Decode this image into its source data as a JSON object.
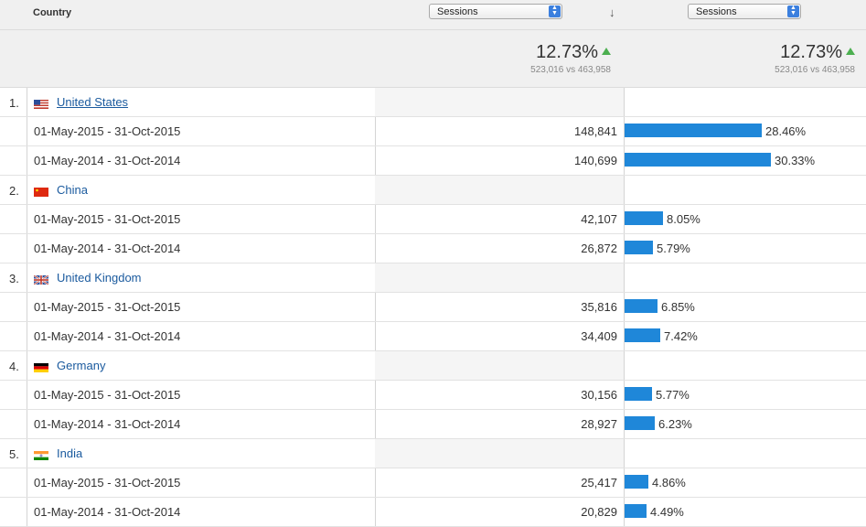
{
  "header": {
    "country_label": "Country",
    "metric_select_1": "Sessions",
    "metric_select_2": "Sessions",
    "sort_icon": "arrow-down-icon"
  },
  "summary": {
    "col1": {
      "percent": "12.73%",
      "comparison": "523,016 vs 463,958"
    },
    "col2": {
      "percent": "12.73%",
      "comparison": "523,016 vs 463,958"
    }
  },
  "rows": [
    {
      "rank": "1.",
      "country": "United States",
      "flag": "us",
      "periods": [
        {
          "range": "01-May-2015 - 31-Oct-2015",
          "sessions": "148,841",
          "share": "28.46%",
          "share_value": 28.46
        },
        {
          "range": "01-May-2014 - 31-Oct-2014",
          "sessions": "140,699",
          "share": "30.33%",
          "share_value": 30.33
        }
      ]
    },
    {
      "rank": "2.",
      "country": "China",
      "flag": "cn",
      "periods": [
        {
          "range": "01-May-2015 - 31-Oct-2015",
          "sessions": "42,107",
          "share": "8.05%",
          "share_value": 8.05
        },
        {
          "range": "01-May-2014 - 31-Oct-2014",
          "sessions": "26,872",
          "share": "5.79%",
          "share_value": 5.79
        }
      ]
    },
    {
      "rank": "3.",
      "country": "United Kingdom",
      "flag": "gb",
      "periods": [
        {
          "range": "01-May-2015 - 31-Oct-2015",
          "sessions": "35,816",
          "share": "6.85%",
          "share_value": 6.85
        },
        {
          "range": "01-May-2014 - 31-Oct-2014",
          "sessions": "34,409",
          "share": "7.42%",
          "share_value": 7.42
        }
      ]
    },
    {
      "rank": "4.",
      "country": "Germany",
      "flag": "de",
      "periods": [
        {
          "range": "01-May-2015 - 31-Oct-2015",
          "sessions": "30,156",
          "share": "5.77%",
          "share_value": 5.77
        },
        {
          "range": "01-May-2014 - 31-Oct-2014",
          "sessions": "28,927",
          "share": "6.23%",
          "share_value": 6.23
        }
      ]
    },
    {
      "rank": "5.",
      "country": "India",
      "flag": "in",
      "periods": [
        {
          "range": "01-May-2015 - 31-Oct-2015",
          "sessions": "25,417",
          "share": "4.86%",
          "share_value": 4.86
        },
        {
          "range": "01-May-2014 - 31-Oct-2014",
          "sessions": "20,829",
          "share": "4.49%",
          "share_value": 4.49
        }
      ]
    }
  ],
  "colors": {
    "bar": "#1f87d9",
    "link": "#1a5a9e",
    "up_arrow": "#4caf50"
  }
}
